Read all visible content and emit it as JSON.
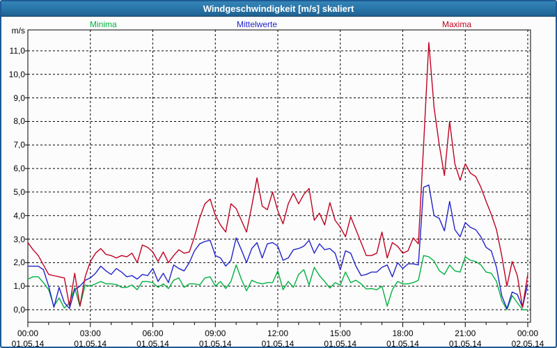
{
  "window": {
    "title": "Windgeschwindigkeit [m/s] skaliert"
  },
  "legend": [
    {
      "label": "Minima",
      "color": "#00b140"
    },
    {
      "label": "Mittelwerte",
      "color": "#2222cc"
    },
    {
      "label": "Maxima",
      "color": "#c00020"
    }
  ],
  "axes": {
    "unit_label": "m/s",
    "y_labels": [
      "11,0",
      "10,0",
      "9,0",
      "8,0",
      "7,0",
      "6,0",
      "5,0",
      "4,0",
      "3,0",
      "2,0",
      "1,0",
      "0,0"
    ],
    "x_ticks": [
      {
        "time": "00:00",
        "date": "01.05.14"
      },
      {
        "time": "03:00",
        "date": "01.05.14"
      },
      {
        "time": "06:00",
        "date": "01.05.14"
      },
      {
        "time": "09:00",
        "date": "01.05.14"
      },
      {
        "time": "12:00",
        "date": "01.05.14"
      },
      {
        "time": "15:00",
        "date": "01.05.14"
      },
      {
        "time": "18:00",
        "date": "01.05.14"
      },
      {
        "time": "21:00",
        "date": "01.05.14"
      },
      {
        "time": "00:00",
        "date": "02.05.14"
      }
    ]
  },
  "chart_data": {
    "type": "line",
    "title": "Windgeschwindigkeit [m/s] skaliert",
    "ylabel": "m/s",
    "ylim": [
      0,
      11.9
    ],
    "xlim_hours": [
      0,
      24
    ],
    "x_start_hour": 0,
    "x_step_hours": 0.25,
    "grid": "dashed-black, 1 m/s horizontal, 3 h vertical",
    "legend_position": "top",
    "series": [
      {
        "name": "Minima",
        "color": "#00b140",
        "values": [
          1.3,
          1.4,
          1.4,
          1.15,
          0.85,
          0.15,
          0.5,
          0.07,
          0.3,
          0.93,
          0.15,
          1.05,
          1.0,
          1.1,
          1.2,
          1.1,
          1.1,
          1.07,
          0.95,
          0.95,
          1.05,
          0.85,
          1.2,
          1.2,
          1.15,
          0.95,
          1.1,
          0.9,
          1.25,
          1.35,
          0.95,
          1.1,
          1.1,
          1.05,
          1.35,
          1.4,
          1.0,
          1.2,
          0.9,
          1.2,
          1.9,
          1.3,
          0.8,
          1.25,
          1.15,
          1.1,
          1.15,
          1.15,
          1.65,
          0.85,
          1.2,
          0.95,
          1.5,
          1.7,
          1.05,
          1.8,
          1.45,
          1.2,
          0.92,
          1.15,
          1.05,
          1.6,
          1.15,
          1.25,
          1.1,
          0.88,
          0.9,
          0.85,
          1.0,
          0.15,
          0.85,
          1.2,
          1.1,
          1.1,
          1.15,
          1.25,
          2.3,
          2.25,
          2.07,
          1.66,
          1.5,
          1.9,
          1.65,
          1.6,
          2.25,
          2.1,
          2.05,
          1.9,
          1.6,
          1.55,
          1.2,
          0.4,
          0.0,
          0.6,
          0.3,
          0.0,
          0.0
        ]
      },
      {
        "name": "Mittelwerte",
        "color": "#2222cc",
        "values": [
          1.85,
          1.85,
          1.85,
          1.7,
          1.0,
          0.1,
          0.95,
          0.3,
          0.05,
          0.85,
          1.0,
          1.25,
          1.35,
          1.55,
          1.85,
          1.65,
          1.5,
          1.75,
          1.6,
          1.4,
          1.45,
          1.3,
          1.5,
          1.45,
          1.75,
          1.2,
          1.55,
          1.15,
          1.9,
          1.75,
          1.65,
          2.0,
          2.5,
          2.8,
          2.9,
          2.95,
          2.3,
          2.2,
          1.85,
          2.1,
          3.05,
          2.55,
          2.0,
          2.6,
          2.85,
          2.2,
          2.8,
          2.85,
          2.7,
          2.1,
          2.2,
          2.55,
          2.6,
          2.7,
          2.95,
          2.4,
          2.8,
          2.55,
          2.6,
          2.4,
          1.7,
          2.5,
          2.4,
          1.85,
          1.45,
          1.5,
          1.6,
          1.6,
          1.8,
          1.9,
          1.4,
          2.0,
          1.75,
          1.95,
          1.95,
          1.9,
          5.2,
          5.3,
          4.0,
          3.88,
          3.35,
          4.6,
          3.4,
          3.1,
          3.7,
          3.5,
          3.4,
          3.1,
          2.65,
          2.5,
          1.8,
          0.6,
          0.05,
          0.75,
          0.65,
          0.1,
          1.1
        ]
      },
      {
        "name": "Maxima",
        "color": "#c00020",
        "values": [
          2.85,
          2.55,
          2.3,
          1.9,
          1.5,
          1.45,
          1.4,
          1.35,
          0.15,
          1.55,
          0.15,
          1.4,
          2.05,
          2.4,
          2.6,
          2.35,
          2.3,
          2.2,
          2.3,
          2.25,
          2.4,
          2.0,
          2.75,
          2.65,
          2.45,
          2.05,
          2.45,
          2.0,
          2.3,
          2.55,
          2.4,
          2.45,
          3.1,
          3.9,
          4.5,
          4.7,
          4.0,
          3.6,
          3.3,
          4.5,
          4.3,
          3.8,
          3.3,
          4.4,
          5.6,
          4.4,
          4.25,
          5.0,
          4.2,
          3.65,
          4.5,
          4.95,
          4.5,
          4.9,
          5.15,
          3.8,
          4.1,
          3.6,
          4.55,
          3.8,
          3.5,
          3.1,
          3.95,
          3.4,
          2.85,
          2.3,
          2.3,
          2.4,
          3.3,
          2.2,
          2.85,
          2.7,
          2.4,
          2.5,
          3.05,
          2.8,
          7.0,
          11.35,
          8.6,
          7.0,
          5.7,
          8.0,
          6.2,
          5.5,
          6.2,
          5.8,
          5.66,
          5.2,
          4.6,
          4.05,
          3.4,
          2.3,
          1.0,
          2.05,
          1.45,
          0.1,
          1.5
        ]
      }
    ]
  }
}
